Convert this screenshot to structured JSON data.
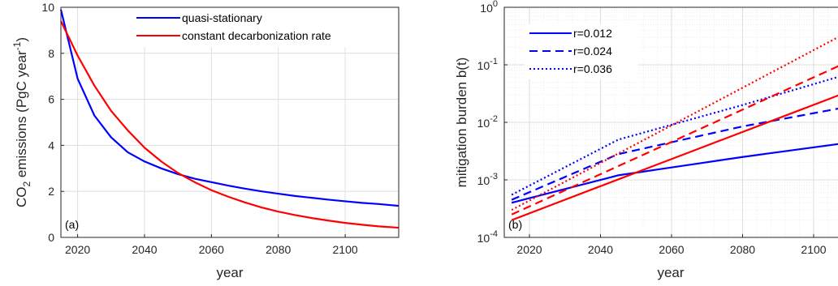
{
  "chart_data": [
    {
      "type": "line",
      "panel_label": "(a)",
      "xlabel": "year",
      "ylabel_main": "CO",
      "ylabel_sub": "2",
      "ylabel_rest": " emissions (PgC year",
      "ylabel_sup": "-1",
      "ylabel_end": ")",
      "xlim": [
        2015,
        2116
      ],
      "ylim": [
        0,
        10
      ],
      "xticks": [
        2020,
        2040,
        2060,
        2080,
        2100
      ],
      "yticks": [
        0,
        2,
        4,
        6,
        8,
        10
      ],
      "grid": true,
      "legend_position": "top-right",
      "series": [
        {
          "name": "quasi-stationary",
          "color": "#0000ff",
          "style": "solid",
          "x": [
            2015,
            2020,
            2025,
            2030,
            2035,
            2040,
            2045,
            2050,
            2055,
            2060,
            2065,
            2070,
            2075,
            2080,
            2085,
            2090,
            2095,
            2100,
            2105,
            2110,
            2116
          ],
          "y": [
            9.9,
            6.9,
            5.3,
            4.35,
            3.7,
            3.3,
            3.0,
            2.75,
            2.55,
            2.4,
            2.25,
            2.12,
            2.0,
            1.9,
            1.8,
            1.72,
            1.64,
            1.57,
            1.5,
            1.45,
            1.37
          ]
        },
        {
          "name": "constant decarbonization rate",
          "color": "#ff0000",
          "style": "solid",
          "x": [
            2015,
            2020,
            2025,
            2030,
            2035,
            2040,
            2045,
            2050,
            2055,
            2060,
            2065,
            2070,
            2075,
            2080,
            2085,
            2090,
            2095,
            2100,
            2105,
            2110,
            2116
          ],
          "y": [
            9.4,
            7.9,
            6.6,
            5.5,
            4.65,
            3.9,
            3.3,
            2.8,
            2.4,
            2.05,
            1.77,
            1.52,
            1.3,
            1.12,
            0.97,
            0.84,
            0.73,
            0.63,
            0.55,
            0.48,
            0.42
          ]
        }
      ]
    },
    {
      "type": "line",
      "panel_label": "(b)",
      "xlabel": "year",
      "ylabel": "mitigation burden b(t)",
      "yscale": "log",
      "xlim": [
        2015,
        2116
      ],
      "ylim": [
        0.0001,
        1
      ],
      "xticks": [
        2020,
        2040,
        2060,
        2080,
        2100
      ],
      "ytick_exponents": [
        "0",
        "-1",
        "-2",
        "-3",
        "-4"
      ],
      "ytick_base": "10",
      "grid": true,
      "minor_grid": true,
      "legend_position": "top-left",
      "legend": [
        {
          "label": "r=0.012",
          "style": "solid"
        },
        {
          "label": "r=0.024",
          "style": "dashed"
        },
        {
          "label": "r=0.036",
          "style": "dotted"
        }
      ],
      "series": [
        {
          "color": "#0000ff",
          "style": "solid",
          "x": [
            2015,
            2045,
            2080,
            2116
          ],
          "y": [
            0.0004,
            0.0012,
            0.0025,
            0.005
          ]
        },
        {
          "color": "#0000ff",
          "style": "dashed",
          "x": [
            2015,
            2045,
            2080,
            2116
          ],
          "y": [
            0.00045,
            0.0028,
            0.0085,
            0.022
          ]
        },
        {
          "color": "#0000ff",
          "style": "dotted",
          "x": [
            2015,
            2045,
            2080,
            2116
          ],
          "y": [
            0.00055,
            0.005,
            0.02,
            0.09
          ]
        },
        {
          "color": "#ff0000",
          "style": "solid",
          "x": [
            2015,
            2116
          ],
          "y": [
            0.0002,
            0.048
          ]
        },
        {
          "color": "#ff0000",
          "style": "dashed",
          "x": [
            2015,
            2116
          ],
          "y": [
            0.00025,
            0.17
          ]
        },
        {
          "color": "#ff0000",
          "style": "dotted",
          "x": [
            2015,
            2116
          ],
          "y": [
            0.0003,
            0.6
          ]
        }
      ]
    }
  ]
}
